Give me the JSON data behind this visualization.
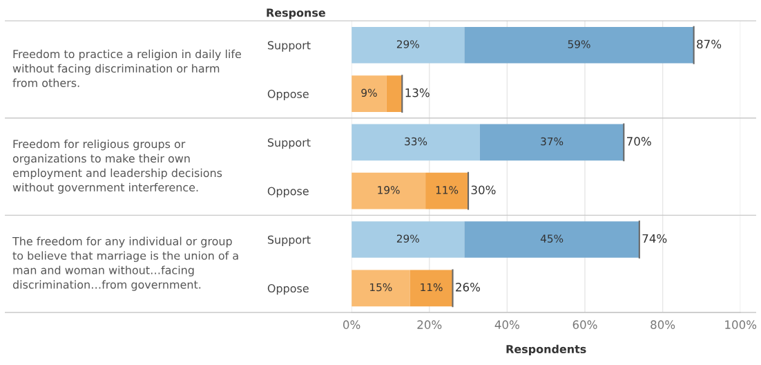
{
  "chart_data": {
    "type": "bar",
    "orientation": "horizontal",
    "stacked": true,
    "categories": [
      "Support",
      "Oppose",
      "Support",
      "Oppose",
      "Support",
      "Oppose"
    ],
    "series": [
      {
        "colors": [
          "#a6cde6",
          "#f9bb72",
          "#a6cde6",
          "#f9bb72",
          "#a6cde6",
          "#f9bb72"
        ],
        "values": [
          29,
          9,
          33,
          19,
          29,
          15
        ],
        "value_labels": [
          "29%",
          "9%",
          "33%",
          "19%",
          "29%",
          "15%"
        ]
      },
      {
        "colors": [
          "#76aad0",
          "#f4a549",
          "#76aad0",
          "#f4a549",
          "#76aad0",
          "#f4a549"
        ],
        "values": [
          59,
          4,
          37,
          11,
          45,
          11
        ],
        "value_labels": [
          "59%",
          null,
          "37%",
          "11%",
          "45%",
          "11%"
        ]
      }
    ],
    "totals": [
      "87%",
      "13%",
      "70%",
      "30%",
      "74%",
      "26%"
    ],
    "xlim": [
      0,
      100
    ],
    "xticks": [
      {
        "value": 0,
        "label": "0%"
      },
      {
        "value": 20,
        "label": "20%"
      },
      {
        "value": 40,
        "label": "40%"
      },
      {
        "value": 60,
        "label": "60%"
      },
      {
        "value": 80,
        "label": "80%"
      },
      {
        "value": 100,
        "label": "100%"
      }
    ],
    "xlabel": "Respondents",
    "grid": "x",
    "annotations": [
      "Response",
      "Freedom to practice a religion in daily life\nwithout facing discrimination or harm\nfrom others.",
      "Freedom for religious groups or\norganizations to make their own\nemployment and leadership decisions\nwithout government interference.",
      "The freedom for any individual or group\nto believe that marriage is the union of a\nman and woman without…facing\ndiscrimination…from government."
    ]
  }
}
